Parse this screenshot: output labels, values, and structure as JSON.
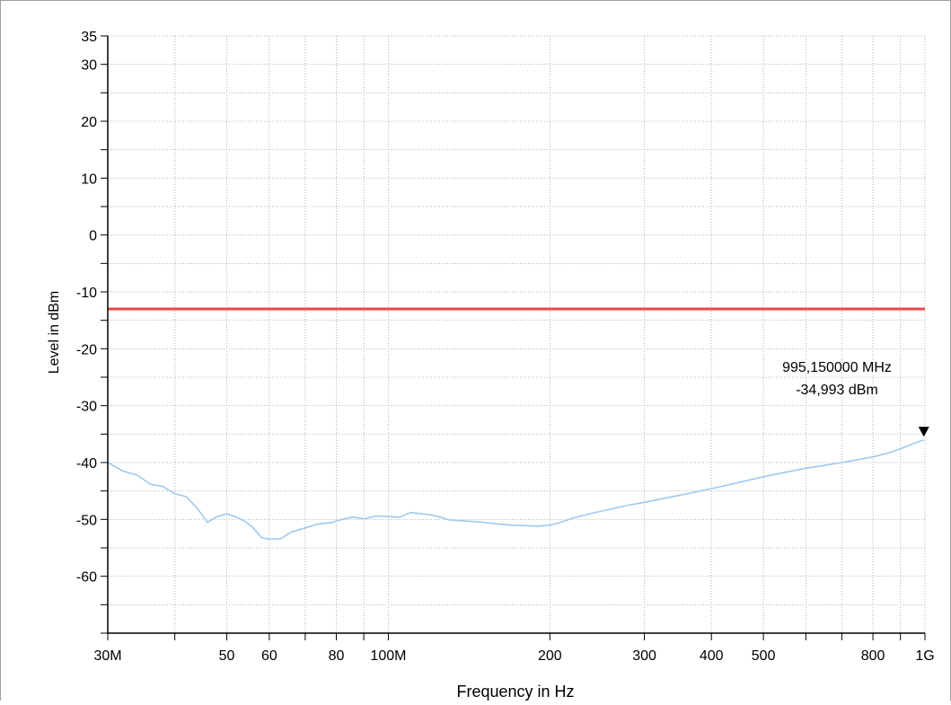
{
  "chart_data": {
    "type": "line",
    "title": "",
    "xlabel": "Frequency in Hz",
    "ylabel": "Level in dBm",
    "x_scale": "log",
    "xlim": [
      30,
      1000
    ],
    "ylim": [
      -70,
      35
    ],
    "grid": true,
    "x_ticks": [
      {
        "value": 30,
        "label": "30M"
      },
      {
        "value": 50,
        "label": "50"
      },
      {
        "value": 60,
        "label": "60"
      },
      {
        "value": 80,
        "label": "80"
      },
      {
        "value": 100,
        "label": "100M"
      },
      {
        "value": 200,
        "label": "200"
      },
      {
        "value": 300,
        "label": "300"
      },
      {
        "value": 400,
        "label": "400"
      },
      {
        "value": 500,
        "label": "500"
      },
      {
        "value": 800,
        "label": "800"
      },
      {
        "value": 1000,
        "label": "1G"
      }
    ],
    "y_ticks": [
      {
        "value": 35,
        "label": "35"
      },
      {
        "value": 30,
        "label": "30"
      },
      {
        "value": 20,
        "label": "20"
      },
      {
        "value": 10,
        "label": "10"
      },
      {
        "value": 0,
        "label": "0"
      },
      {
        "value": -10,
        "label": "-10"
      },
      {
        "value": -20,
        "label": "-20"
      },
      {
        "value": -30,
        "label": "-30"
      },
      {
        "value": -40,
        "label": "-40"
      },
      {
        "value": -50,
        "label": "-50"
      },
      {
        "value": -60,
        "label": "-60"
      }
    ],
    "limit_line": {
      "value": -13,
      "color": "#e8474a"
    },
    "series": [
      {
        "color": "#9ec9ee",
        "x": [
          30,
          32,
          34,
          36,
          38,
          40,
          42,
          44,
          46,
          48,
          50,
          52,
          54,
          56,
          58,
          60,
          63,
          66,
          70,
          74,
          78,
          82,
          86,
          90,
          95,
          100,
          105,
          110,
          115,
          120,
          125,
          130,
          140,
          150,
          160,
          170,
          180,
          190,
          200,
          210,
          220,
          240,
          260,
          280,
          300,
          330,
          360,
          400,
          450,
          500,
          550,
          600,
          650,
          700,
          750,
          800,
          850,
          900,
          950,
          995
        ],
        "y": [
          -40,
          -41.5,
          -42.2,
          -43.8,
          -44.2,
          -45.5,
          -46,
          -48,
          -50.5,
          -49.5,
          -49,
          -49.6,
          -50.3,
          -51.5,
          -53.2,
          -53.5,
          -53.4,
          -52.2,
          -51.5,
          -50.8,
          -50.6,
          -50,
          -49.6,
          -49.9,
          -49.4,
          -49.5,
          -49.6,
          -48.8,
          -49,
          -49.2,
          -49.6,
          -50.1,
          -50.3,
          -50.5,
          -50.8,
          -51,
          -51.1,
          -51.2,
          -51,
          -50.5,
          -49.8,
          -48.9,
          -48.2,
          -47.5,
          -47,
          -46.2,
          -45.5,
          -44.6,
          -43.5,
          -42.5,
          -41.7,
          -41,
          -40.5,
          -40,
          -39.5,
          -39,
          -38.4,
          -37.6,
          -36.7,
          -36
        ]
      }
    ],
    "marker": {
      "x": 995.15,
      "y": -34.993,
      "label_freq": "995,150000 MHz",
      "label_level": "-34,993 dBm"
    }
  }
}
